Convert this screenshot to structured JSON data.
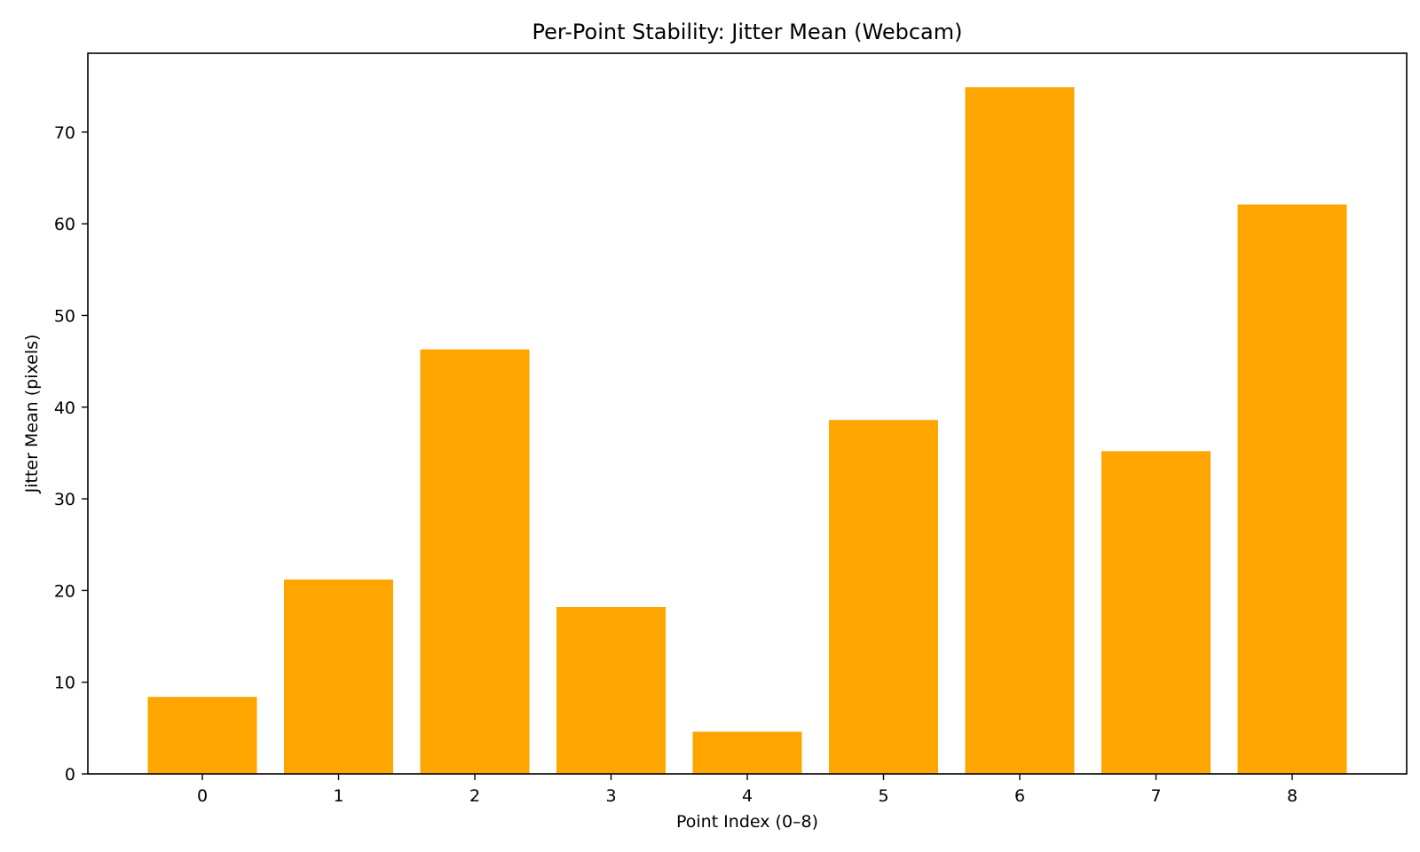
{
  "chart_data": {
    "type": "bar",
    "title": "Per-Point Stability: Jitter Mean (Webcam)",
    "xlabel": "Point Index (0–8)",
    "ylabel": "Jitter Mean (pixels)",
    "categories": [
      "0",
      "1",
      "2",
      "3",
      "4",
      "5",
      "6",
      "7",
      "8"
    ],
    "values": [
      8.4,
      21.2,
      46.3,
      18.2,
      4.6,
      38.6,
      74.9,
      35.2,
      62.1
    ],
    "ylim": [
      0,
      78.6
    ],
    "yticks": [
      0,
      10,
      20,
      30,
      40,
      50,
      60,
      70
    ],
    "bar_color": "#FFA500",
    "grid": false,
    "legend": "none"
  }
}
